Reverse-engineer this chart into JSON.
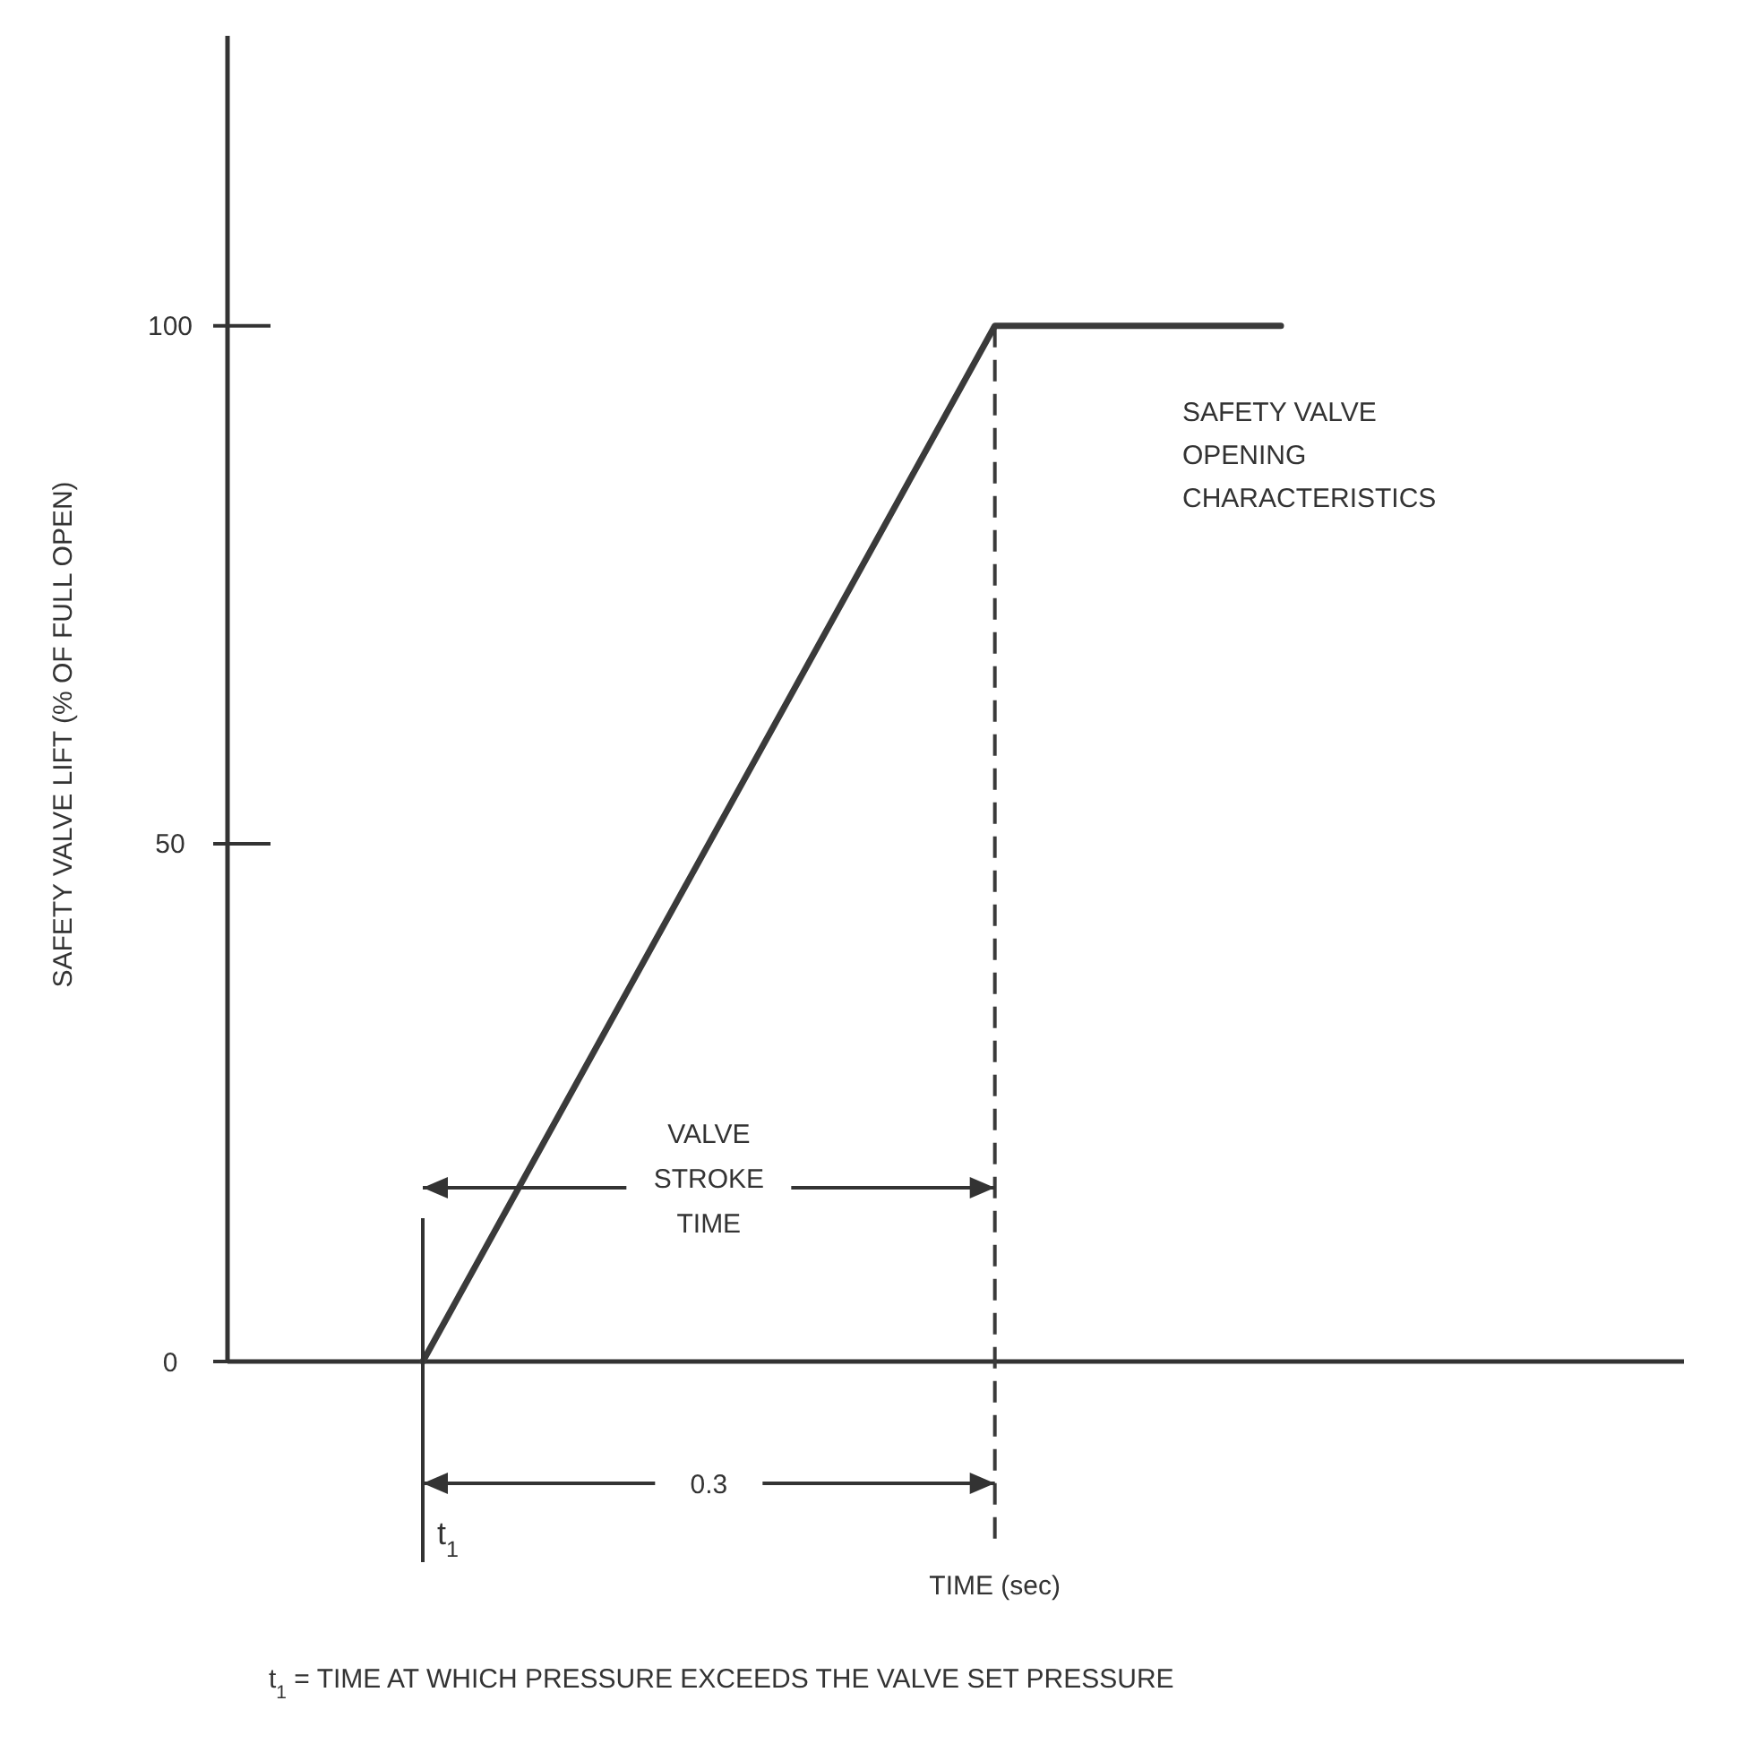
{
  "chart_data": {
    "type": "line",
    "ylabel": "SAFETY VALVE LIFT (% OF FULL OPEN)",
    "categories": [
      null,
      null,
      null,
      null
    ],
    "series": [
      {
        "color": "#3a3a3a",
        "values": [
          0,
          50,
          100,
          100
        ]
      }
    ],
    "ylim": [
      0,
      128
    ],
    "yticks": [
      0,
      50,
      100
    ],
    "ref_lines": [
      {
        "axis": "x",
        "line_style": "dashed",
        "color": "#3a3a3a"
      }
    ],
    "annotations": [
      "SAFETY VALVE\nOPENING\nCHARACTERISTICS",
      "VALVE\nSTROKE\nTIME",
      "0.3",
      "t$_{1}$",
      "t$_{1}$ = TIME AT WHICH PRESSURE EXCEEDS THE VALVE SET PRESSURE",
      "TIME (sec)"
    ],
    "grid": false,
    "marker": "none",
    "line_style": "solid"
  }
}
